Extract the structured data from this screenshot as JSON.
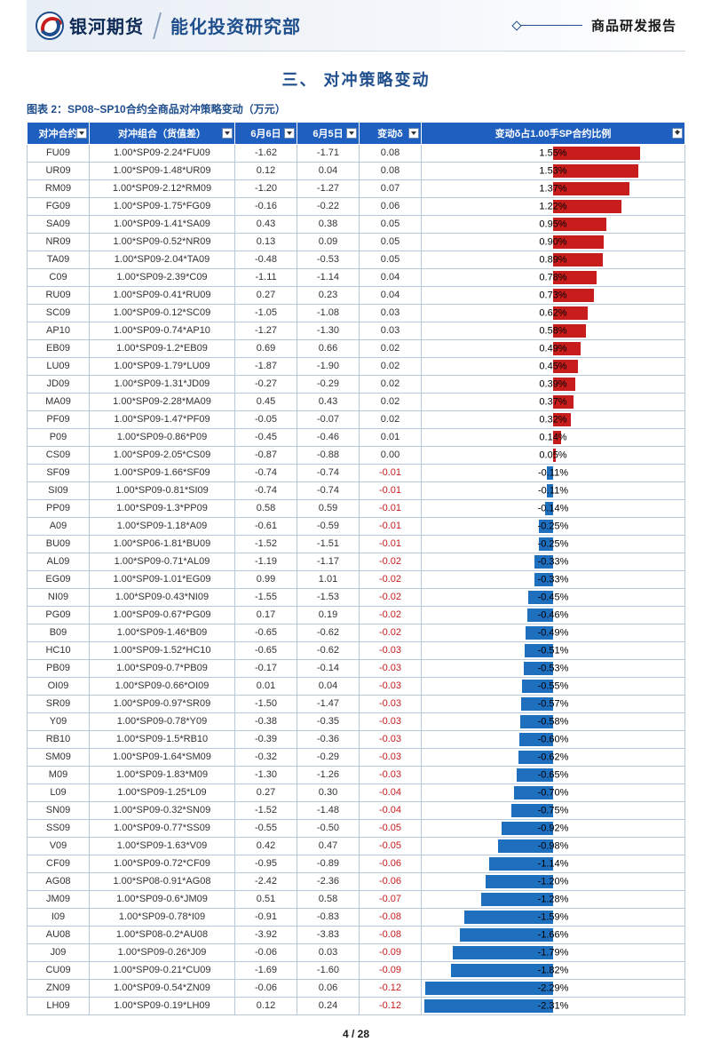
{
  "header": {
    "company": "银河期货",
    "department": "能化投资研究部",
    "report_type": "商品研发报告"
  },
  "section": {
    "number_title": "三、    对冲策略变动"
  },
  "figure": {
    "caption": "图表 2：SP08~SP10合约全商品对冲策略变动（万元）"
  },
  "table": {
    "headers": [
      "对冲合约",
      "对冲组合（货值差）",
      "6月6日",
      "6月5日",
      "变动δ",
      "变动δ占1.00手SP合约比例"
    ],
    "col_widths": [
      "70px",
      "164px",
      "70px",
      "70px",
      "70px",
      "auto"
    ],
    "bar_max_abs": 2.35,
    "bar_pos_color": "#c81d1d",
    "bar_neg_color": "#1f6fbf",
    "rows": [
      {
        "c": "FU09",
        "combo": "1.00*SP09-2.24*FU09",
        "d6": "-1.62",
        "d5": "-1.71",
        "delta": "0.08",
        "pct": 1.55
      },
      {
        "c": "UR09",
        "combo": "1.00*SP09-1.48*UR09",
        "d6": "0.12",
        "d5": "0.04",
        "delta": "0.08",
        "pct": 1.53
      },
      {
        "c": "RM09",
        "combo": "1.00*SP09-2.12*RM09",
        "d6": "-1.20",
        "d5": "-1.27",
        "delta": "0.07",
        "pct": 1.37
      },
      {
        "c": "FG09",
        "combo": "1.00*SP09-1.75*FG09",
        "d6": "-0.16",
        "d5": "-0.22",
        "delta": "0.06",
        "pct": 1.22
      },
      {
        "c": "SA09",
        "combo": "1.00*SP09-1.41*SA09",
        "d6": "0.43",
        "d5": "0.38",
        "delta": "0.05",
        "pct": 0.95
      },
      {
        "c": "NR09",
        "combo": "1.00*SP09-0.52*NR09",
        "d6": "0.13",
        "d5": "0.09",
        "delta": "0.05",
        "pct": 0.9
      },
      {
        "c": "TA09",
        "combo": "1.00*SP09-2.04*TA09",
        "d6": "-0.48",
        "d5": "-0.53",
        "delta": "0.05",
        "pct": 0.89
      },
      {
        "c": "C09",
        "combo": "1.00*SP09-2.39*C09",
        "d6": "-1.11",
        "d5": "-1.14",
        "delta": "0.04",
        "pct": 0.78
      },
      {
        "c": "RU09",
        "combo": "1.00*SP09-0.41*RU09",
        "d6": "0.27",
        "d5": "0.23",
        "delta": "0.04",
        "pct": 0.73
      },
      {
        "c": "SC09",
        "combo": "1.00*SP09-0.12*SC09",
        "d6": "-1.05",
        "d5": "-1.08",
        "delta": "0.03",
        "pct": 0.62
      },
      {
        "c": "AP10",
        "combo": "1.00*SP09-0.74*AP10",
        "d6": "-1.27",
        "d5": "-1.30",
        "delta": "0.03",
        "pct": 0.58
      },
      {
        "c": "EB09",
        "combo": "1.00*SP09-1.2*EB09",
        "d6": "0.69",
        "d5": "0.66",
        "delta": "0.02",
        "pct": 0.49
      },
      {
        "c": "LU09",
        "combo": "1.00*SP09-1.79*LU09",
        "d6": "-1.87",
        "d5": "-1.90",
        "delta": "0.02",
        "pct": 0.45
      },
      {
        "c": "JD09",
        "combo": "1.00*SP09-1.31*JD09",
        "d6": "-0.27",
        "d5": "-0.29",
        "delta": "0.02",
        "pct": 0.39
      },
      {
        "c": "MA09",
        "combo": "1.00*SP09-2.28*MA09",
        "d6": "0.45",
        "d5": "0.43",
        "delta": "0.02",
        "pct": 0.37
      },
      {
        "c": "PF09",
        "combo": "1.00*SP09-1.47*PF09",
        "d6": "-0.05",
        "d5": "-0.07",
        "delta": "0.02",
        "pct": 0.32
      },
      {
        "c": "P09",
        "combo": "1.00*SP09-0.86*P09",
        "d6": "-0.45",
        "d5": "-0.46",
        "delta": "0.01",
        "pct": 0.14
      },
      {
        "c": "CS09",
        "combo": "1.00*SP09-2.05*CS09",
        "d6": "-0.87",
        "d5": "-0.88",
        "delta": "0.00",
        "pct": 0.05
      },
      {
        "c": "SF09",
        "combo": "1.00*SP09-1.66*SF09",
        "d6": "-0.74",
        "d5": "-0.74",
        "delta": "-0.01",
        "pct": -0.11
      },
      {
        "c": "SI09",
        "combo": "1.00*SP09-0.81*SI09",
        "d6": "-0.74",
        "d5": "-0.74",
        "delta": "-0.01",
        "pct": -0.11
      },
      {
        "c": "PP09",
        "combo": "1.00*SP09-1.3*PP09",
        "d6": "0.58",
        "d5": "0.59",
        "delta": "-0.01",
        "pct": -0.14
      },
      {
        "c": "A09",
        "combo": "1.00*SP09-1.18*A09",
        "d6": "-0.61",
        "d5": "-0.59",
        "delta": "-0.01",
        "pct": -0.25
      },
      {
        "c": "BU09",
        "combo": "1.00*SP06-1.81*BU09",
        "d6": "-1.52",
        "d5": "-1.51",
        "delta": "-0.01",
        "pct": -0.25
      },
      {
        "c": "AL09",
        "combo": "1.00*SP09-0.71*AL09",
        "d6": "-1.19",
        "d5": "-1.17",
        "delta": "-0.02",
        "pct": -0.33
      },
      {
        "c": "EG09",
        "combo": "1.00*SP09-1.01*EG09",
        "d6": "0.99",
        "d5": "1.01",
        "delta": "-0.02",
        "pct": -0.33
      },
      {
        "c": "NI09",
        "combo": "1.00*SP09-0.43*NI09",
        "d6": "-1.55",
        "d5": "-1.53",
        "delta": "-0.02",
        "pct": -0.45
      },
      {
        "c": "PG09",
        "combo": "1.00*SP09-0.67*PG09",
        "d6": "0.17",
        "d5": "0.19",
        "delta": "-0.02",
        "pct": -0.46
      },
      {
        "c": "B09",
        "combo": "1.00*SP09-1.46*B09",
        "d6": "-0.65",
        "d5": "-0.62",
        "delta": "-0.02",
        "pct": -0.49
      },
      {
        "c": "HC10",
        "combo": "1.00*SP09-1.52*HC10",
        "d6": "-0.65",
        "d5": "-0.62",
        "delta": "-0.03",
        "pct": -0.51
      },
      {
        "c": "PB09",
        "combo": "1.00*SP09-0.7*PB09",
        "d6": "-0.17",
        "d5": "-0.14",
        "delta": "-0.03",
        "pct": -0.53
      },
      {
        "c": "OI09",
        "combo": "1.00*SP09-0.66*OI09",
        "d6": "0.01",
        "d5": "0.04",
        "delta": "-0.03",
        "pct": -0.55
      },
      {
        "c": "SR09",
        "combo": "1.00*SP09-0.97*SR09",
        "d6": "-1.50",
        "d5": "-1.47",
        "delta": "-0.03",
        "pct": -0.57
      },
      {
        "c": "Y09",
        "combo": "1.00*SP09-0.78*Y09",
        "d6": "-0.38",
        "d5": "-0.35",
        "delta": "-0.03",
        "pct": -0.58
      },
      {
        "c": "RB10",
        "combo": "1.00*SP09-1.5*RB10",
        "d6": "-0.39",
        "d5": "-0.36",
        "delta": "-0.03",
        "pct": -0.6
      },
      {
        "c": "SM09",
        "combo": "1.00*SP09-1.64*SM09",
        "d6": "-0.32",
        "d5": "-0.29",
        "delta": "-0.03",
        "pct": -0.62
      },
      {
        "c": "M09",
        "combo": "1.00*SP09-1.83*M09",
        "d6": "-1.30",
        "d5": "-1.26",
        "delta": "-0.03",
        "pct": -0.65
      },
      {
        "c": "L09",
        "combo": "1.00*SP09-1.25*L09",
        "d6": "0.27",
        "d5": "0.30",
        "delta": "-0.04",
        "pct": -0.7
      },
      {
        "c": "SN09",
        "combo": "1.00*SP09-0.32*SN09",
        "d6": "-1.52",
        "d5": "-1.48",
        "delta": "-0.04",
        "pct": -0.75
      },
      {
        "c": "SS09",
        "combo": "1.00*SP09-0.77*SS09",
        "d6": "-0.55",
        "d5": "-0.50",
        "delta": "-0.05",
        "pct": -0.92
      },
      {
        "c": "V09",
        "combo": "1.00*SP09-1.63*V09",
        "d6": "0.42",
        "d5": "0.47",
        "delta": "-0.05",
        "pct": -0.98
      },
      {
        "c": "CF09",
        "combo": "1.00*SP09-0.72*CF09",
        "d6": "-0.95",
        "d5": "-0.89",
        "delta": "-0.06",
        "pct": -1.14
      },
      {
        "c": "AG08",
        "combo": "1.00*SP08-0.91*AG08",
        "d6": "-2.42",
        "d5": "-2.36",
        "delta": "-0.06",
        "pct": -1.2
      },
      {
        "c": "JM09",
        "combo": "1.00*SP09-0.6*JM09",
        "d6": "0.51",
        "d5": "0.58",
        "delta": "-0.07",
        "pct": -1.28
      },
      {
        "c": "I09",
        "combo": "1.00*SP09-0.78*I09",
        "d6": "-0.91",
        "d5": "-0.83",
        "delta": "-0.08",
        "pct": -1.59
      },
      {
        "c": "AU08",
        "combo": "1.00*SP08-0.2*AU08",
        "d6": "-3.92",
        "d5": "-3.83",
        "delta": "-0.08",
        "pct": -1.66
      },
      {
        "c": "J09",
        "combo": "1.00*SP09-0.26*J09",
        "d6": "-0.06",
        "d5": "0.03",
        "delta": "-0.09",
        "pct": -1.79
      },
      {
        "c": "CU09",
        "combo": "1.00*SP09-0.21*CU09",
        "d6": "-1.69",
        "d5": "-1.60",
        "delta": "-0.09",
        "pct": -1.82
      },
      {
        "c": "ZN09",
        "combo": "1.00*SP09-0.54*ZN09",
        "d6": "-0.06",
        "d5": "0.06",
        "delta": "-0.12",
        "pct": -2.29
      },
      {
        "c": "LH09",
        "combo": "1.00*SP09-0.19*LH09",
        "d6": "0.12",
        "d5": "0.24",
        "delta": "-0.12",
        "pct": -2.31
      }
    ]
  },
  "footer": {
    "page": "4",
    "sep": " / ",
    "total": "28"
  }
}
